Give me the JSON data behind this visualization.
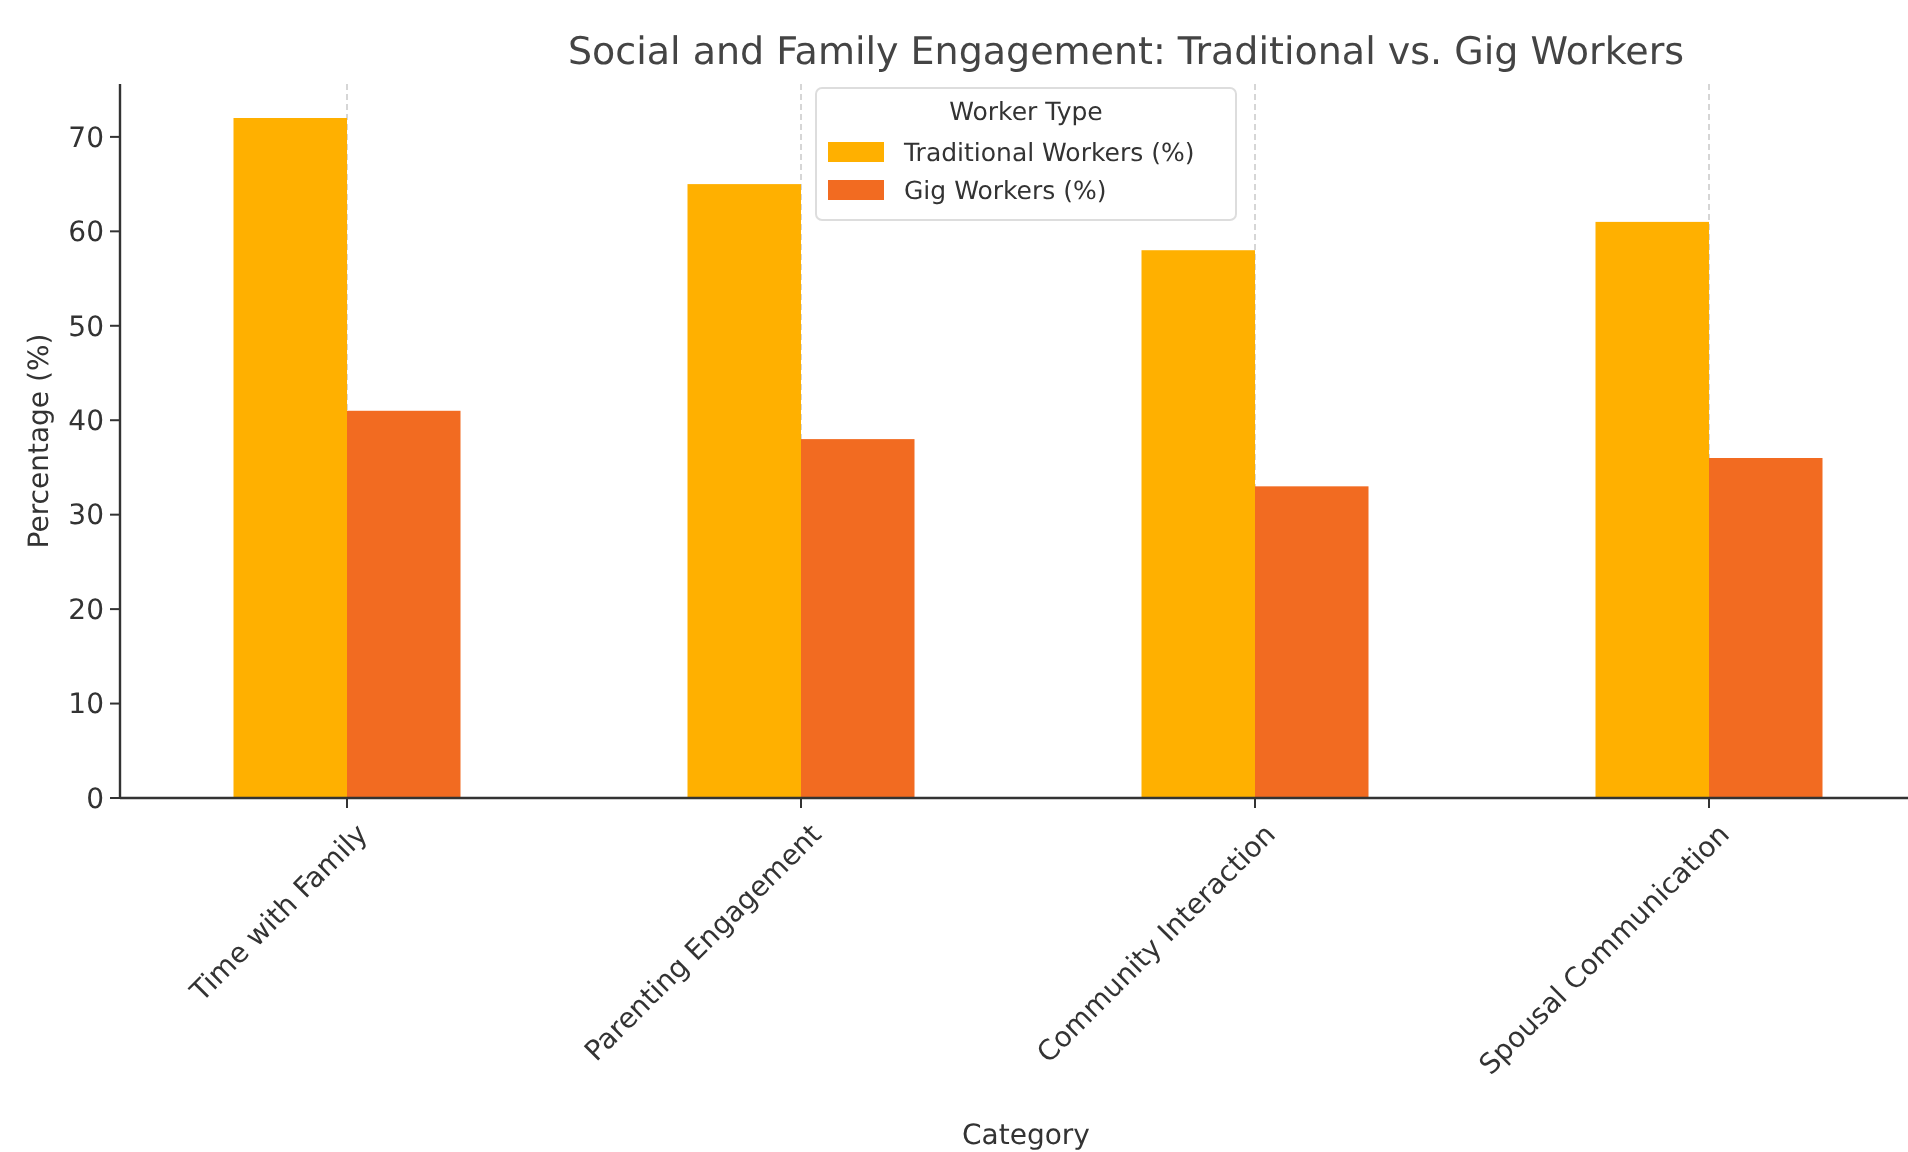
{
  "chart_data": {
    "type": "bar",
    "title": "Social and Family Engagement: Traditional vs. Gig Workers",
    "xlabel": "Category",
    "ylabel": "Percentage (%)",
    "legend_title": "Worker Type",
    "categories": [
      "Time with Family",
      "Parenting Engagement",
      "Community Interaction",
      "Spousal Communication"
    ],
    "series": [
      {
        "name": "Traditional Workers (%)",
        "color": "#ffb000",
        "values": [
          72,
          65,
          58,
          61
        ]
      },
      {
        "name": "Gig Workers (%)",
        "color": "#f26b21",
        "values": [
          41,
          38,
          33,
          36
        ]
      }
    ],
    "ylim": [
      0,
      75.6
    ],
    "yticks": [
      0,
      10,
      20,
      30,
      40,
      50,
      60,
      70
    ],
    "grid": "x",
    "legend": "top"
  }
}
